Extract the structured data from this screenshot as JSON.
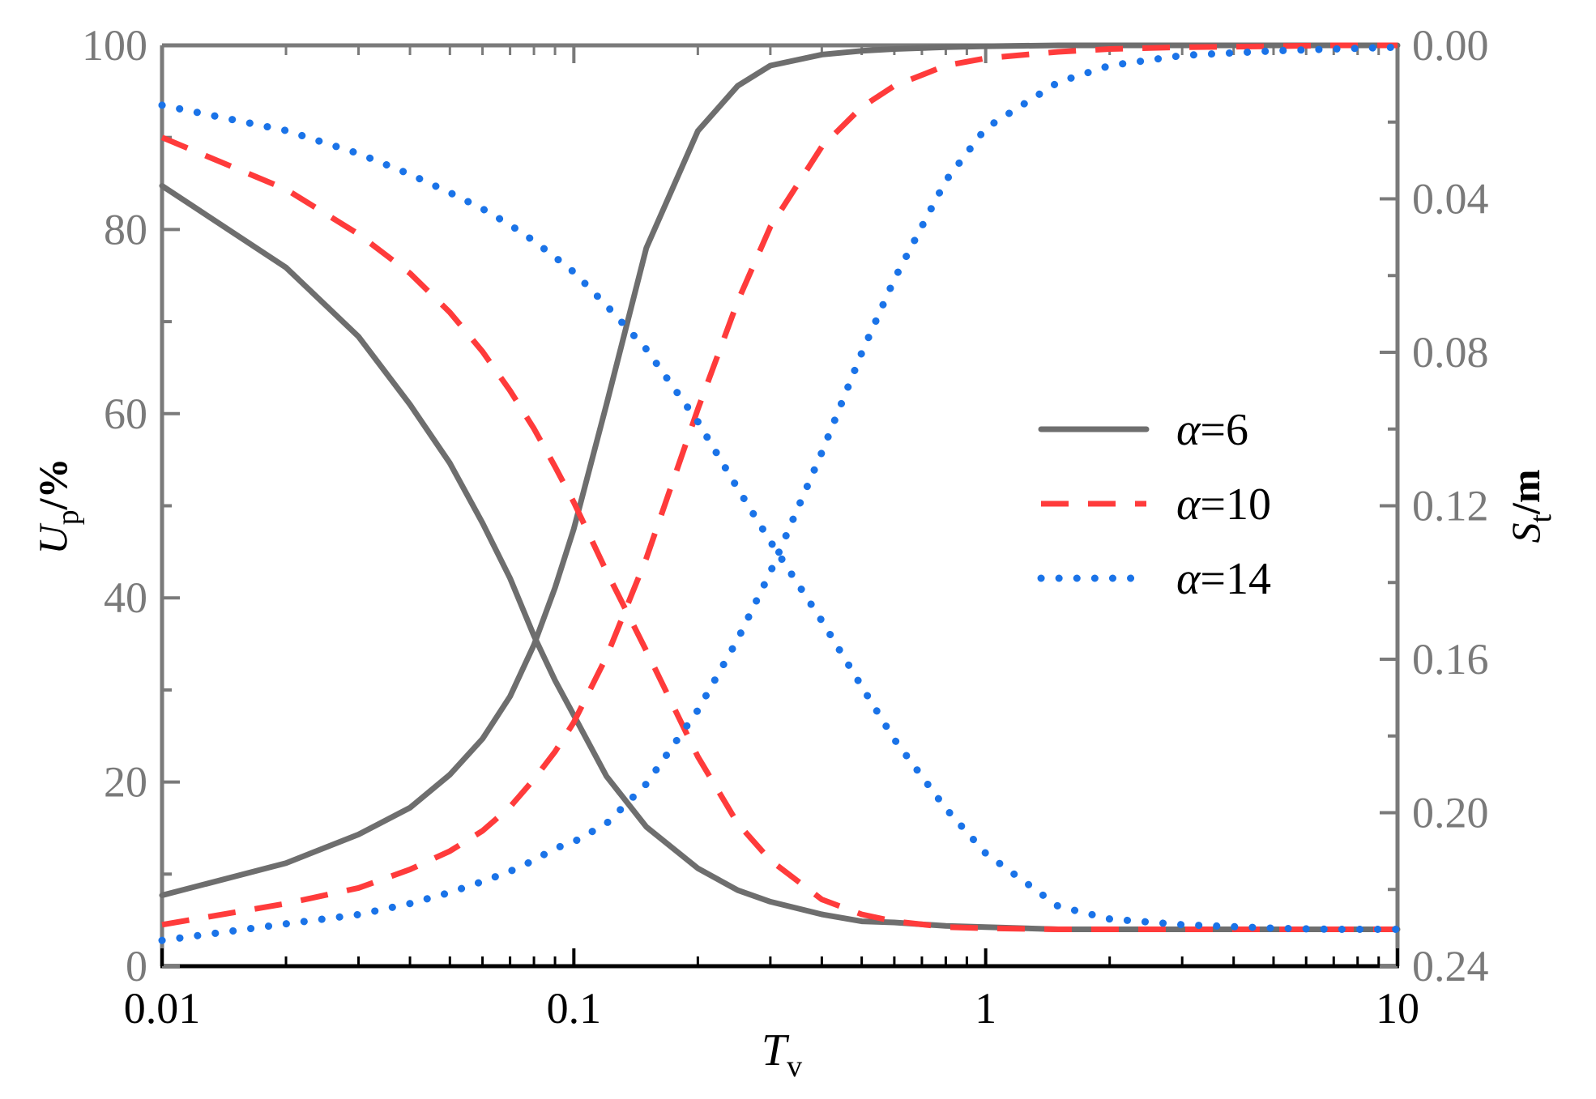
{
  "chart_data": {
    "type": "line",
    "xscale": "log",
    "xlim": [
      0.01,
      10
    ],
    "x_ticks": [
      "0.01",
      "0.1",
      "1",
      "10"
    ],
    "xlabel": {
      "main": "T",
      "sub": "v"
    },
    "y_left": {
      "label": {
        "main": "U",
        "sub": "p",
        "suffix": "/%"
      },
      "lim": [
        0,
        100
      ],
      "ticks": [
        "0",
        "20",
        "40",
        "60",
        "80",
        "100"
      ]
    },
    "y_right": {
      "label": {
        "main": "S",
        "sub": "t",
        "suffix": "/m"
      },
      "lim": [
        0.24,
        0.0
      ],
      "inverted": true,
      "ticks": [
        "0.00",
        "0.04",
        "0.08",
        "0.12",
        "0.16",
        "0.20",
        "0.24"
      ]
    },
    "legend": {
      "placement": "center-right"
    },
    "x": [
      0.01,
      0.02,
      0.03,
      0.04,
      0.05,
      0.06,
      0.07,
      0.08,
      0.09,
      0.1,
      0.12,
      0.15,
      0.2,
      0.25,
      0.3,
      0.4,
      0.5,
      0.6,
      0.8,
      1,
      1.5,
      2,
      3,
      5,
      7,
      10
    ],
    "series": [
      {
        "name": "α=6",
        "alpha_value": "6",
        "style": "solid",
        "color": "#6e6e6e",
        "axis": "left",
        "values": [
          7.7,
          11.2,
          14.3,
          17.2,
          20.8,
          24.7,
          29.3,
          34.9,
          41.1,
          47.5,
          61.0,
          78.0,
          90.7,
          95.6,
          97.8,
          99.0,
          99.4,
          99.6,
          99.8,
          99.9,
          100,
          100,
          100,
          100,
          100,
          100
        ]
      },
      {
        "name": "α=6",
        "style": "solid",
        "color": "#6e6e6e",
        "axis": "right",
        "values": [
          0.0366,
          0.0579,
          0.0759,
          0.0936,
          0.1089,
          0.1245,
          0.1389,
          0.1539,
          0.1655,
          0.1746,
          0.1905,
          0.2037,
          0.2145,
          0.2202,
          0.2232,
          0.2265,
          0.2283,
          0.2286,
          0.2295,
          0.2298,
          0.2304,
          0.2304,
          0.2304,
          0.2304,
          0.2304,
          0.2304
        ]
      },
      {
        "name": "α=10",
        "alpha_value": "10",
        "style": "dashed",
        "color": "#ff3b3b",
        "axis": "left",
        "values": [
          4.5,
          6.8,
          8.5,
          10.5,
          12.5,
          14.7,
          17.3,
          20.3,
          23.3,
          26.5,
          33.6,
          44.3,
          60.5,
          72.2,
          80.3,
          89.0,
          93.3,
          95.6,
          97.8,
          98.6,
          99.3,
          99.6,
          99.8,
          99.9,
          100,
          100
        ]
      },
      {
        "name": "α=10",
        "style": "dashed",
        "color": "#ff3b3b",
        "axis": "right",
        "values": [
          0.024,
          0.0375,
          0.0492,
          0.0594,
          0.0696,
          0.0798,
          0.09,
          0.0999,
          0.1098,
          0.1191,
          0.1371,
          0.1578,
          0.1854,
          0.2028,
          0.2124,
          0.2226,
          0.2265,
          0.2283,
          0.2298,
          0.2301,
          0.2304,
          0.2304,
          0.2304,
          0.2304,
          0.2304,
          0.2304
        ]
      },
      {
        "name": "α=14",
        "alpha_value": "14",
        "style": "dotted",
        "color": "#1a73e8",
        "axis": "left",
        "values": [
          2.8,
          4.6,
          5.6,
          6.8,
          8.0,
          9.2,
          10.3,
          11.5,
          12.8,
          13.5,
          15.5,
          19.8,
          27.8,
          35.5,
          42.8,
          55.8,
          66.6,
          74.6,
          85.3,
          91.0,
          96.0,
          97.8,
          98.9,
          99.4,
          99.6,
          99.8
        ]
      },
      {
        "name": "α=14",
        "style": "dotted",
        "color": "#1a73e8",
        "axis": "right",
        "values": [
          0.0156,
          0.0222,
          0.0282,
          0.0336,
          0.0384,
          0.0426,
          0.0468,
          0.051,
          0.0552,
          0.0591,
          0.0678,
          0.0792,
          0.0981,
          0.1155,
          0.1293,
          0.15,
          0.1671,
          0.1809,
          0.1989,
          0.2106,
          0.2244,
          0.2277,
          0.2292,
          0.2301,
          0.2304,
          0.2304
        ]
      }
    ]
  }
}
